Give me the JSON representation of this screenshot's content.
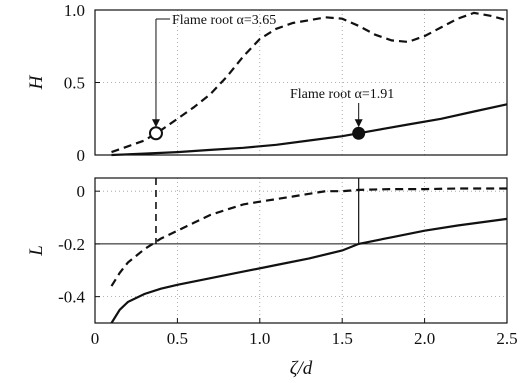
{
  "chart_data": [
    {
      "type": "line",
      "panel": "top",
      "ylabel": "H",
      "xlim": [
        0,
        2.5
      ],
      "ylim": [
        0,
        1.0
      ],
      "yticks": [
        "0",
        "0.5",
        "1.0"
      ],
      "grid": true,
      "series": [
        {
          "style": "dashed",
          "x": [
            0.1,
            0.2,
            0.3,
            0.4,
            0.5,
            0.6,
            0.7,
            0.8,
            0.9,
            1.0,
            1.1,
            1.2,
            1.3,
            1.4,
            1.5,
            1.6,
            1.7,
            1.8,
            1.9,
            2.0,
            2.1,
            2.2,
            2.3,
            2.4,
            2.5
          ],
          "y": [
            0.02,
            0.06,
            0.1,
            0.17,
            0.25,
            0.33,
            0.42,
            0.54,
            0.68,
            0.8,
            0.87,
            0.91,
            0.93,
            0.95,
            0.94,
            0.89,
            0.83,
            0.79,
            0.78,
            0.82,
            0.88,
            0.94,
            0.98,
            0.96,
            0.93
          ]
        },
        {
          "style": "solid",
          "x": [
            0.1,
            0.3,
            0.5,
            0.7,
            0.9,
            1.1,
            1.3,
            1.5,
            1.7,
            1.9,
            2.1,
            2.3,
            2.5
          ],
          "y": [
            0.0,
            0.01,
            0.02,
            0.035,
            0.05,
            0.07,
            0.1,
            0.13,
            0.17,
            0.21,
            0.25,
            0.3,
            0.35
          ]
        }
      ],
      "markers": [
        {
          "label": "Flame root α=3.65",
          "x": 0.37,
          "y": 0.15,
          "fill": "open"
        },
        {
          "label": "Flame root α=1.91",
          "x": 1.6,
          "y": 0.15,
          "fill": "filled"
        }
      ]
    },
    {
      "type": "line",
      "panel": "bottom",
      "xlabel": "ζ/d",
      "ylabel": "L",
      "xlim": [
        0,
        2.5
      ],
      "ylim": [
        -0.5,
        0.05
      ],
      "xticks": [
        "0",
        "0.5",
        "1.0",
        "1.5",
        "2.0",
        "2.5"
      ],
      "yticks": [
        "0",
        "-0.2",
        "-0.4"
      ],
      "grid": true,
      "reference_line_y": -0.2,
      "vertical_markers": [
        {
          "x": 0.37,
          "style": "dashed"
        },
        {
          "x": 1.6,
          "style": "solid"
        }
      ],
      "series": [
        {
          "style": "dashed",
          "x": [
            0.1,
            0.15,
            0.2,
            0.3,
            0.4,
            0.5,
            0.6,
            0.7,
            0.8,
            0.9,
            1.0,
            1.1,
            1.2,
            1.3,
            1.4,
            1.5,
            1.6,
            1.8,
            2.0,
            2.2,
            2.5
          ],
          "y": [
            -0.36,
            -0.31,
            -0.27,
            -0.22,
            -0.18,
            -0.15,
            -0.12,
            -0.09,
            -0.07,
            -0.05,
            -0.04,
            -0.03,
            -0.02,
            -0.01,
            0.0,
            0.0,
            0.005,
            0.008,
            0.008,
            0.01,
            0.01
          ]
        },
        {
          "style": "solid",
          "x": [
            0.1,
            0.15,
            0.2,
            0.3,
            0.4,
            0.5,
            0.7,
            0.9,
            1.1,
            1.3,
            1.5,
            1.6,
            1.8,
            2.0,
            2.2,
            2.5
          ],
          "y": [
            -0.5,
            -0.45,
            -0.42,
            -0.39,
            -0.37,
            -0.355,
            -0.33,
            -0.305,
            -0.28,
            -0.255,
            -0.225,
            -0.2,
            -0.175,
            -0.15,
            -0.13,
            -0.105
          ]
        }
      ]
    }
  ]
}
